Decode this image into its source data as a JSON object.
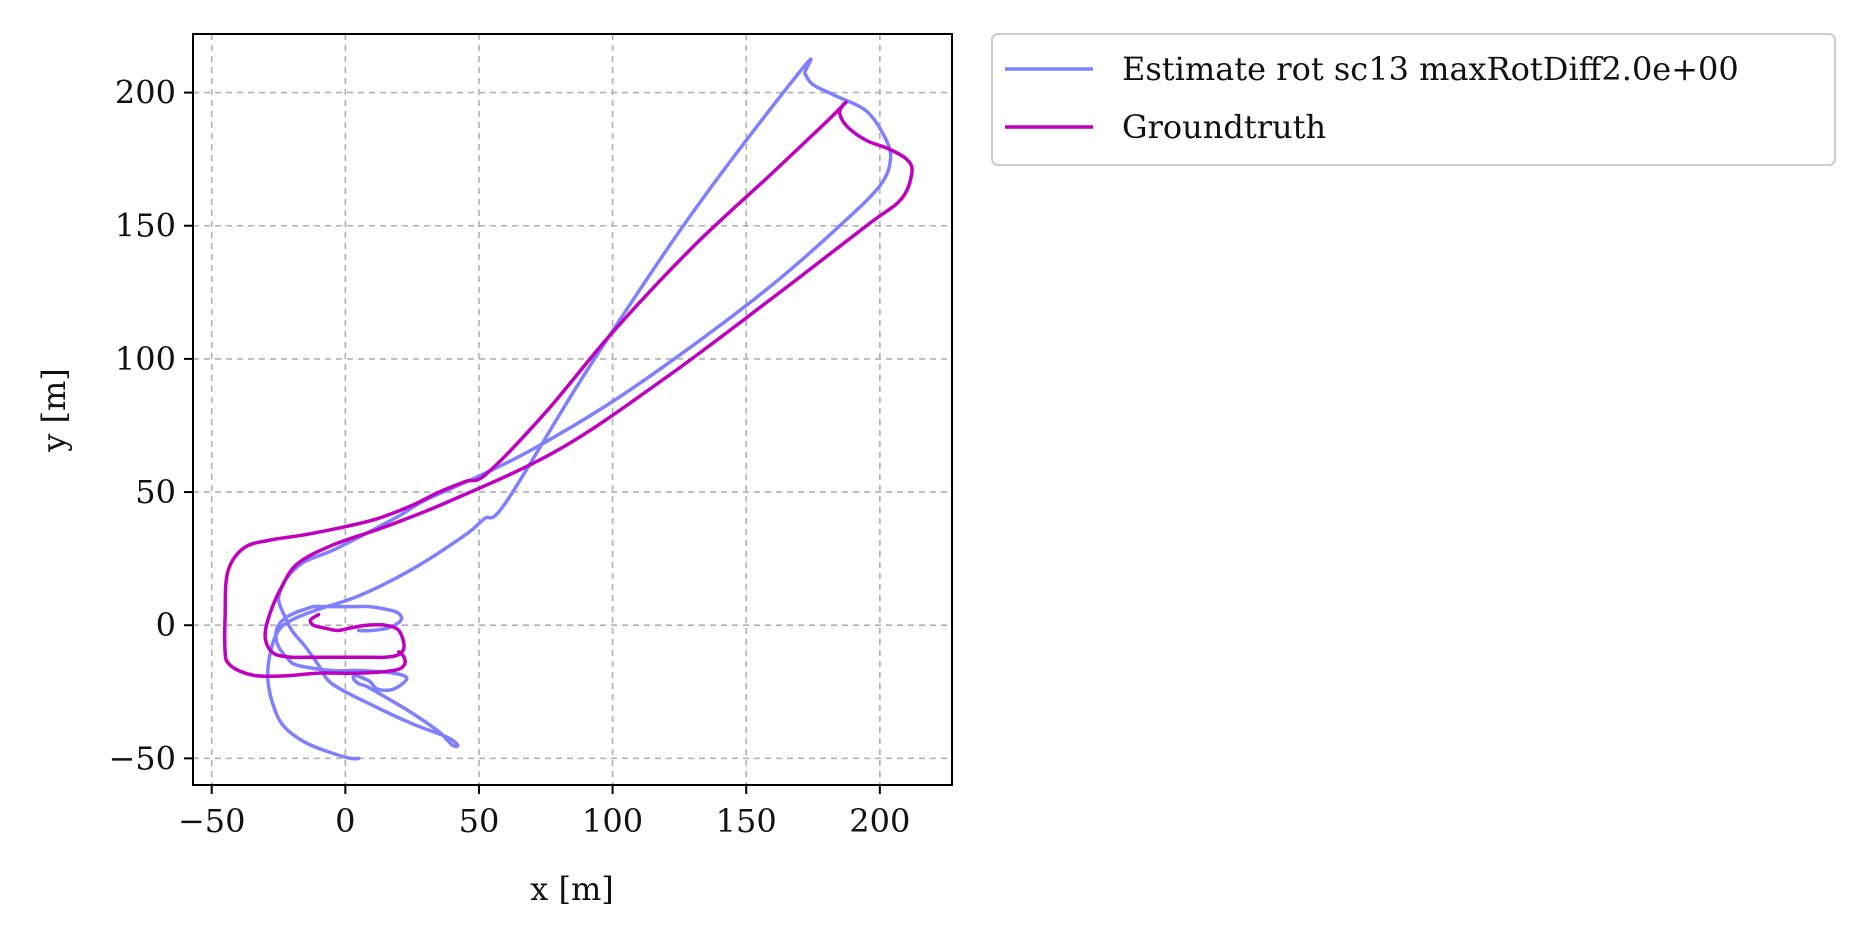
{
  "chart_data": {
    "type": "line",
    "title": "",
    "xlabel": "x [m]",
    "ylabel": "y [m]",
    "xlim": [
      -57,
      227
    ],
    "ylim": [
      -60,
      222
    ],
    "xticks": [
      -50,
      0,
      50,
      100,
      150,
      200
    ],
    "yticks": [
      -50,
      0,
      50,
      100,
      150,
      200
    ],
    "xtick_labels": [
      "−50",
      "0",
      "50",
      "100",
      "150",
      "200"
    ],
    "ytick_labels": [
      "−50",
      "0",
      "50",
      "100",
      "150",
      "200"
    ],
    "grid": true,
    "legend_position": "outside-top-right",
    "series": [
      {
        "name": "Estimate rot sc13 maxRotDiff2.0e+00",
        "color": "#8080ff",
        "x": [
          5,
          2,
          -5,
          -15,
          -23,
          -27,
          -29,
          -28,
          -25,
          -20,
          -10,
          5,
          25,
          45,
          52,
          60,
          90,
          130,
          171,
          172,
          175,
          183,
          195,
          202,
          204,
          200,
          185,
          160,
          130,
          100,
          70,
          50,
          30,
          20,
          5,
          -5,
          -15,
          -20,
          -23,
          -25,
          -23,
          -20,
          -15,
          -10,
          -5,
          10,
          25,
          38,
          42,
          40,
          35,
          25,
          15,
          8,
          5,
          3,
          4,
          9,
          12,
          18,
          23,
          18,
          5,
          -5,
          -18,
          -22,
          -25,
          -26,
          -25,
          -22,
          -18,
          -15,
          -12,
          -8,
          -3,
          3,
          9,
          15,
          19,
          21,
          20,
          16,
          10,
          5
        ],
        "y": [
          -50,
          -50,
          -48,
          -44,
          -38,
          -30,
          -20,
          -10,
          -2,
          2,
          6,
          11,
          21,
          34,
          40,
          46,
          95,
          155,
          209,
          207,
          203,
          199,
          193,
          183,
          175,
          165,
          150,
          128,
          105,
          84,
          66,
          56,
          47,
          41,
          33,
          28,
          24,
          20,
          16,
          10,
          4,
          -2,
          -8,
          -15,
          -22,
          -30,
          -37,
          -42,
          -45,
          -45,
          -40,
          -33,
          -27,
          -23,
          -22,
          -20,
          -19,
          -21,
          -24,
          -24,
          -20,
          -18,
          -17,
          -17,
          -15,
          -12,
          -8,
          -4,
          0,
          3,
          5,
          6,
          7,
          7,
          7,
          7,
          7,
          6,
          5,
          3,
          1,
          -1,
          -2,
          -2
        ]
      },
      {
        "name": "Groundtruth",
        "color": "#bf00bf",
        "x": [
          -10,
          -13,
          -12,
          -8,
          -3,
          2,
          8,
          15,
          20,
          22,
          20,
          15,
          5,
          -10,
          -20,
          -26,
          -29,
          -30,
          -28,
          -24,
          -18,
          -5,
          15,
          40,
          80,
          120,
          160,
          195,
          208,
          212,
          210,
          203,
          195,
          188,
          185,
          186,
          187,
          180,
          160,
          130,
          100,
          75,
          53,
          45,
          35,
          25,
          12,
          0,
          -15,
          -28,
          -38,
          -44,
          -45,
          -45,
          -44,
          -40,
          -33,
          -22,
          -10,
          5,
          18,
          22,
          22,
          20
        ],
        "y": [
          4,
          2,
          0,
          -1,
          -2,
          -1,
          0,
          0,
          -2,
          -8,
          -11,
          -12,
          -12,
          -12,
          -12,
          -11,
          -8,
          -3,
          5,
          14,
          23,
          30,
          37,
          47,
          66,
          93,
          123,
          150,
          160,
          170,
          175,
          179,
          182,
          187,
          192,
          195,
          196,
          189,
          170,
          142,
          110,
          80,
          57,
          54,
          50,
          45,
          40,
          37,
          34,
          32,
          29,
          20,
          3,
          -10,
          -14,
          -17,
          -19,
          -19,
          -18,
          -18,
          -17,
          -15,
          -12,
          -10
        ]
      }
    ]
  }
}
